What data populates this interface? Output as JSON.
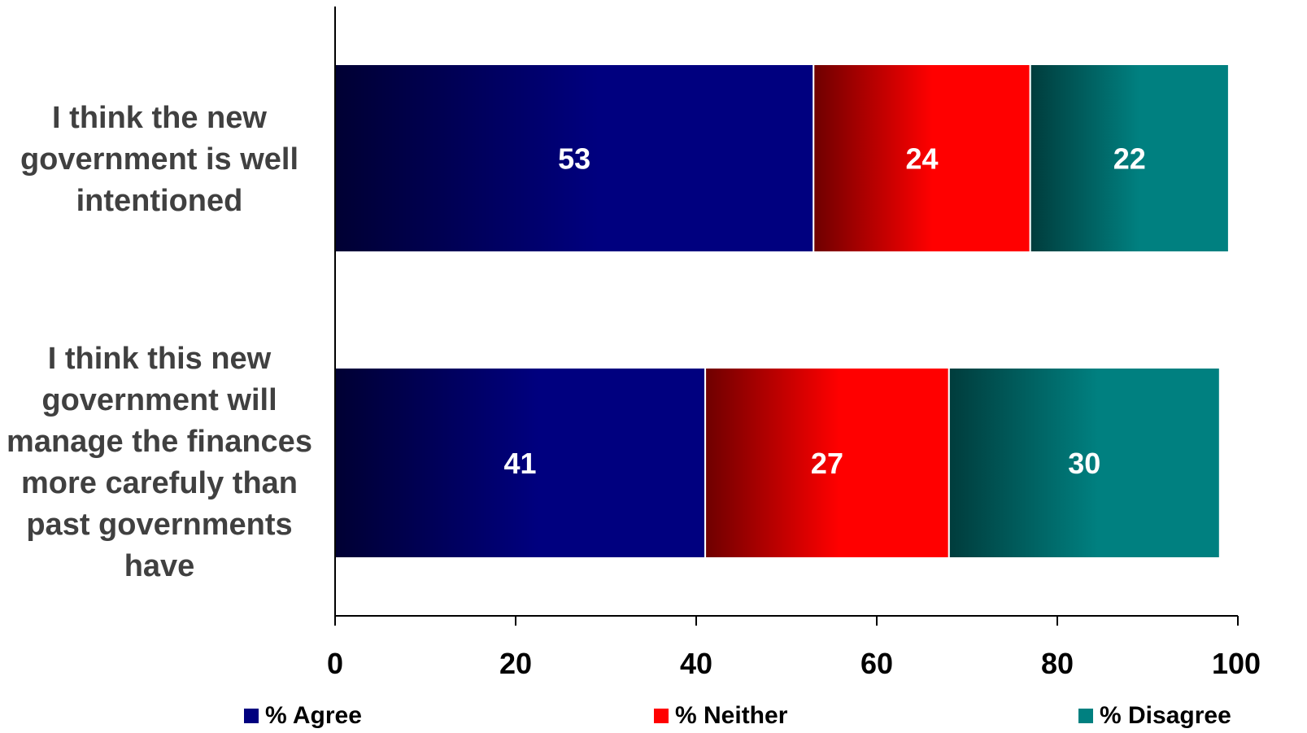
{
  "chart_data": {
    "type": "bar",
    "orientation": "horizontal",
    "stacked": true,
    "categories": [
      "I think the new government is well intentioned",
      "I think this new government will manage the finances more carefuly than past governments have"
    ],
    "series": [
      {
        "name": "% Agree",
        "values": [
          53,
          41
        ],
        "color_dark": "#000033",
        "color_light": "#00007f"
      },
      {
        "name": "% Neither",
        "values": [
          24,
          27
        ],
        "color_dark": "#6e0000",
        "color_light": "#ff0000"
      },
      {
        "name": "% Disagree",
        "values": [
          22,
          30
        ],
        "color_dark": "#003c3c",
        "color_light": "#008080"
      }
    ],
    "xlim": [
      0,
      100
    ],
    "xticks": [
      0,
      20,
      40,
      60,
      80,
      100
    ],
    "title": "",
    "xlabel": "",
    "ylabel": "",
    "legend_position": "bottom",
    "grid": false
  }
}
